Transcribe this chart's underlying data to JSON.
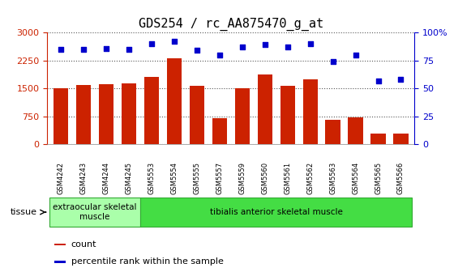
{
  "title": "GDS254 / rc_AA875470_g_at",
  "categories": [
    "GSM4242",
    "GSM4243",
    "GSM4244",
    "GSM4245",
    "GSM5553",
    "GSM5554",
    "GSM5555",
    "GSM5557",
    "GSM5559",
    "GSM5560",
    "GSM5561",
    "GSM5562",
    "GSM5563",
    "GSM5564",
    "GSM5565",
    "GSM5566"
  ],
  "counts": [
    1500,
    1600,
    1620,
    1640,
    1820,
    2300,
    1560,
    700,
    1500,
    1870,
    1560,
    1740,
    660,
    720,
    290,
    280
  ],
  "percentiles": [
    85,
    85,
    86,
    85,
    90,
    92,
    84,
    80,
    87,
    89,
    87,
    90,
    74,
    80,
    57,
    58
  ],
  "bar_color": "#cc2200",
  "dot_color": "#0000cc",
  "ylim_left": [
    0,
    3000
  ],
  "ylim_right": [
    0,
    100
  ],
  "yticks_left": [
    0,
    750,
    1500,
    2250,
    3000
  ],
  "yticks_right": [
    0,
    25,
    50,
    75,
    100
  ],
  "tissue_groups": [
    {
      "label": "extraocular skeletal\nmuscle",
      "indices": [
        0,
        1,
        2,
        3
      ],
      "color": "#aaffaa"
    },
    {
      "label": "tibialis anterior skeletal muscle",
      "indices": [
        4,
        5,
        6,
        7,
        8,
        9,
        10,
        11,
        12,
        13,
        14,
        15
      ],
      "color": "#44dd44"
    }
  ],
  "tissue_label": "tissue",
  "legend_count_label": "count",
  "legend_pct_label": "percentile rank within the sample",
  "bar_color_legend": "#cc2200",
  "dot_color_legend": "#0000cc",
  "tick_label_color_left": "#cc2200",
  "tick_label_color_right": "#0000cc",
  "title_fontsize": 11,
  "axis_fontsize": 8,
  "xticklabel_fontsize": 6,
  "tissue_fontsize": 7.5,
  "legend_fontsize": 8
}
